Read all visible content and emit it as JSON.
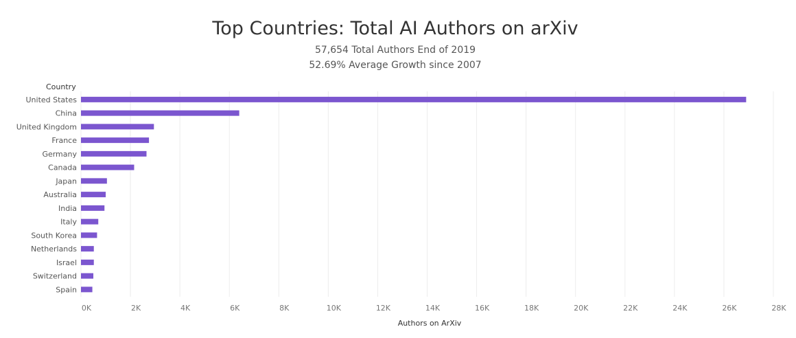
{
  "chart_data": {
    "type": "bar",
    "orientation": "horizontal",
    "title": "Top Countries: Total AI Authors on arXiv",
    "subtitle": [
      "57,654 Total Authors End of 2019",
      "52.69% Average Growth since 2007"
    ],
    "ylabel": "Country",
    "xlabel": "Authors on ArXiv",
    "categories": [
      "United States",
      "China",
      "United Kingdom",
      "France",
      "Germany",
      "Canada",
      "Japan",
      "Australia",
      "India",
      "Italy",
      "South Korea",
      "Netherlands",
      "Israel",
      "Switzerland",
      "Spain"
    ],
    "values": [
      26900,
      6400,
      2950,
      2750,
      2650,
      2150,
      1050,
      1000,
      950,
      700,
      650,
      520,
      520,
      500,
      460
    ],
    "xlim": [
      0,
      28000
    ],
    "xticks": [
      0,
      2000,
      4000,
      6000,
      8000,
      10000,
      12000,
      14000,
      16000,
      18000,
      20000,
      22000,
      24000,
      26000,
      28000
    ],
    "xtick_labels": [
      "0K",
      "2K",
      "4K",
      "6K",
      "8K",
      "10K",
      "12K",
      "14K",
      "16K",
      "18K",
      "20K",
      "22K",
      "24K",
      "26K",
      "28K"
    ],
    "grid": true,
    "bar_color": "#7b56cf"
  }
}
